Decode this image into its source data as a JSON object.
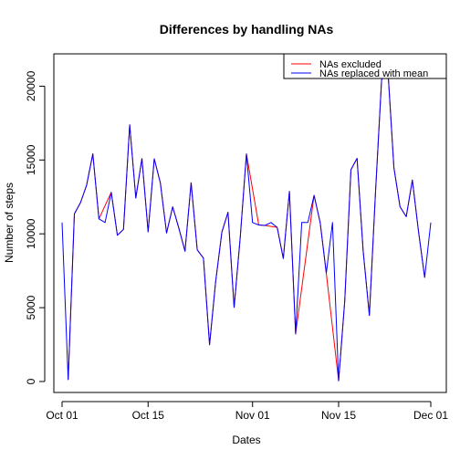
{
  "chart_data": {
    "type": "line",
    "title": "Differences by handling NAs",
    "xlabel": "Dates",
    "ylabel": "Number of steps",
    "xlim": [
      0,
      60
    ],
    "ylim": [
      0,
      21200
    ],
    "x_ticks": [
      {
        "day": 0,
        "label": "Oct 01"
      },
      {
        "day": 14,
        "label": "Oct 15"
      },
      {
        "day": 31,
        "label": "Nov 01"
      },
      {
        "day": 45,
        "label": "Nov 15"
      },
      {
        "day": 60,
        "label": "Dec 01"
      }
    ],
    "y_ticks": [
      0,
      5000,
      10000,
      15000,
      20000
    ],
    "grid": false,
    "legend_position": "top-right",
    "series": [
      {
        "name": "NAs excluded",
        "color": "#ff0000",
        "points": [
          [
            1,
            126
          ],
          [
            2,
            11352
          ],
          [
            3,
            12116
          ],
          [
            4,
            13294
          ],
          [
            5,
            15420
          ],
          [
            6,
            11015
          ],
          [
            8,
            12811
          ],
          [
            9,
            9900
          ],
          [
            10,
            10304
          ],
          [
            11,
            17382
          ],
          [
            12,
            12426
          ],
          [
            13,
            15098
          ],
          [
            14,
            10139
          ],
          [
            15,
            15084
          ],
          [
            16,
            13452
          ],
          [
            17,
            10056
          ],
          [
            18,
            11829
          ],
          [
            19,
            10395
          ],
          [
            20,
            8821
          ],
          [
            21,
            13460
          ],
          [
            22,
            8918
          ],
          [
            23,
            8355
          ],
          [
            24,
            2492
          ],
          [
            25,
            6778
          ],
          [
            26,
            10119
          ],
          [
            27,
            11458
          ],
          [
            28,
            5018
          ],
          [
            29,
            9819
          ],
          [
            30,
            15414
          ],
          [
            32,
            10600
          ],
          [
            33,
            10571
          ],
          [
            35,
            10439
          ],
          [
            36,
            8334
          ],
          [
            37,
            12883
          ],
          [
            38,
            3219
          ],
          [
            41,
            12608
          ],
          [
            42,
            10765
          ],
          [
            43,
            7336
          ],
          [
            45,
            41
          ],
          [
            46,
            5441
          ],
          [
            47,
            14339
          ],
          [
            48,
            15110
          ],
          [
            49,
            8841
          ],
          [
            50,
            4472
          ],
          [
            51,
            12787
          ],
          [
            52,
            20427
          ],
          [
            53,
            21194
          ],
          [
            54,
            14478
          ],
          [
            55,
            11834
          ],
          [
            56,
            11162
          ],
          [
            57,
            13646
          ],
          [
            58,
            10183
          ],
          [
            59,
            7047
          ]
        ]
      },
      {
        "name": "NAs replaced with mean",
        "color": "#0000ff",
        "points": [
          [
            0,
            10766
          ],
          [
            1,
            126
          ],
          [
            2,
            11352
          ],
          [
            3,
            12116
          ],
          [
            4,
            13294
          ],
          [
            5,
            15420
          ],
          [
            6,
            11015
          ],
          [
            7,
            10766
          ],
          [
            8,
            12811
          ],
          [
            9,
            9900
          ],
          [
            10,
            10304
          ],
          [
            11,
            17382
          ],
          [
            12,
            12426
          ],
          [
            13,
            15098
          ],
          [
            14,
            10139
          ],
          [
            15,
            15084
          ],
          [
            16,
            13452
          ],
          [
            17,
            10056
          ],
          [
            18,
            11829
          ],
          [
            19,
            10395
          ],
          [
            20,
            8821
          ],
          [
            21,
            13460
          ],
          [
            22,
            8918
          ],
          [
            23,
            8355
          ],
          [
            24,
            2492
          ],
          [
            25,
            6778
          ],
          [
            26,
            10119
          ],
          [
            27,
            11458
          ],
          [
            28,
            5018
          ],
          [
            29,
            9819
          ],
          [
            30,
            15414
          ],
          [
            31,
            10766
          ],
          [
            32,
            10600
          ],
          [
            33,
            10571
          ],
          [
            34,
            10766
          ],
          [
            35,
            10439
          ],
          [
            36,
            8334
          ],
          [
            37,
            12883
          ],
          [
            38,
            3219
          ],
          [
            39,
            10766
          ],
          [
            40,
            10766
          ],
          [
            41,
            12608
          ],
          [
            42,
            10765
          ],
          [
            43,
            7336
          ],
          [
            44,
            10766
          ],
          [
            45,
            41
          ],
          [
            46,
            5441
          ],
          [
            47,
            14339
          ],
          [
            48,
            15110
          ],
          [
            49,
            8841
          ],
          [
            50,
            4472
          ],
          [
            51,
            12787
          ],
          [
            52,
            20427
          ],
          [
            53,
            21194
          ],
          [
            54,
            14478
          ],
          [
            55,
            11834
          ],
          [
            56,
            11162
          ],
          [
            57,
            13646
          ],
          [
            58,
            10183
          ],
          [
            59,
            7047
          ],
          [
            60,
            10766
          ]
        ]
      }
    ]
  }
}
